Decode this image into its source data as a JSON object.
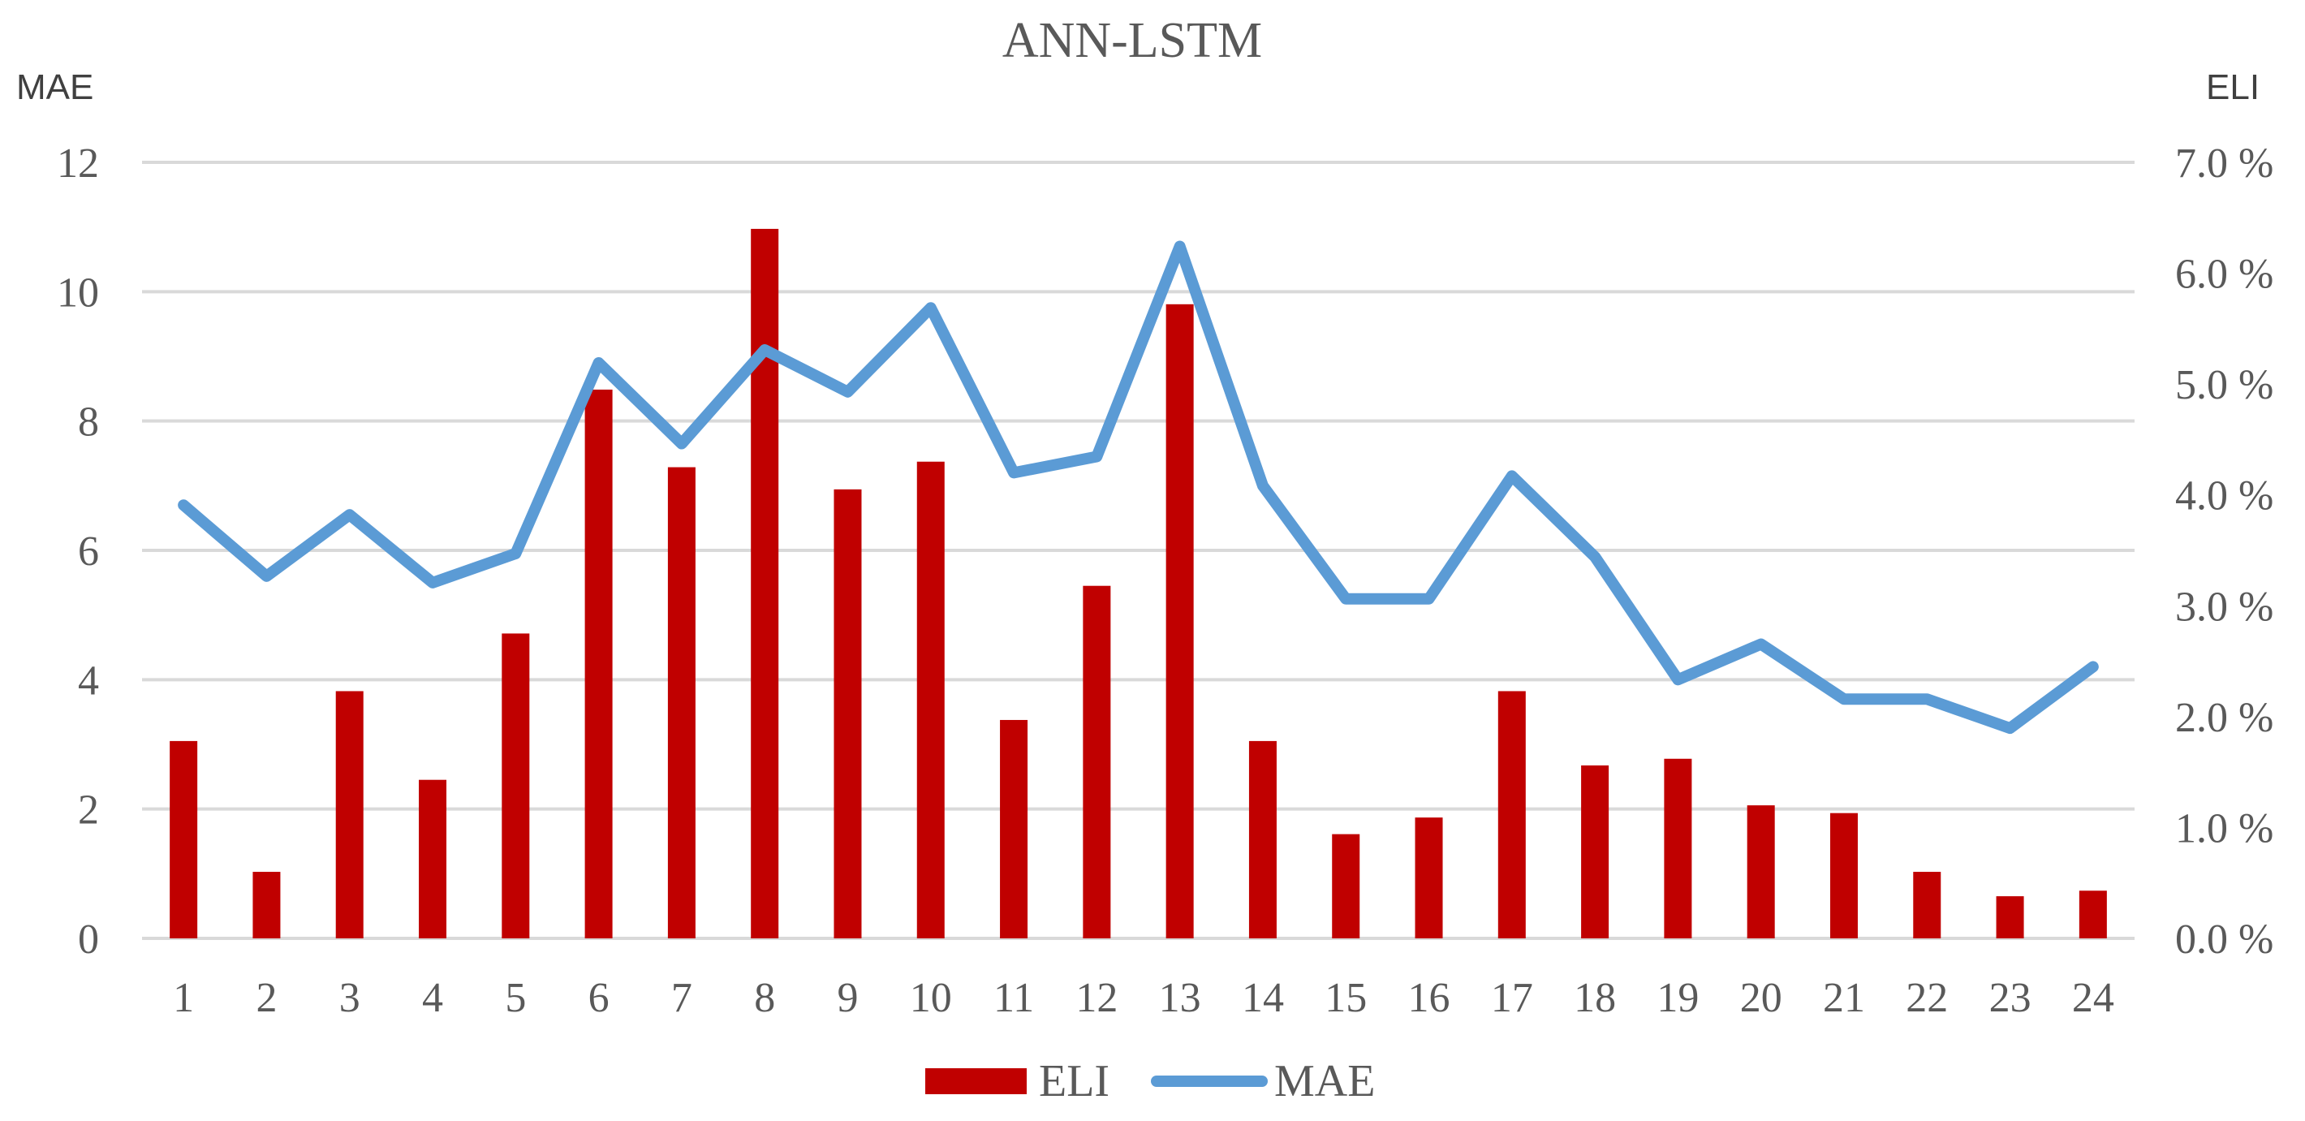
{
  "chart_data": {
    "type": "bar",
    "title": "ANN-LSTM",
    "left_axis_label": "MAE",
    "right_axis_label": "ELI",
    "categories": [
      "1",
      "2",
      "3",
      "4",
      "5",
      "6",
      "7",
      "8",
      "9",
      "10",
      "11",
      "12",
      "13",
      "14",
      "15",
      "16",
      "17",
      "18",
      "19",
      "20",
      "21",
      "22",
      "23",
      "24"
    ],
    "left_axis": {
      "min": 0,
      "max": 12,
      "ticks": [
        "0",
        "2",
        "4",
        "6",
        "8",
        "10",
        "12"
      ]
    },
    "right_axis": {
      "min": 0,
      "max": 7,
      "ticks": [
        "0.0 %",
        "1.0 %",
        "2.0 %",
        "3.0 %",
        "4.0 %",
        "5.0 %",
        "6.0 %",
        "7.0 %"
      ]
    },
    "series": [
      {
        "name": "ELI",
        "type": "bar",
        "axis": "right",
        "color": "#C00000",
        "values": [
          1.78,
          0.6,
          2.23,
          1.43,
          2.75,
          4.95,
          4.25,
          6.4,
          4.05,
          4.3,
          1.97,
          3.18,
          5.72,
          1.78,
          0.94,
          1.09,
          2.23,
          1.56,
          1.62,
          1.2,
          1.13,
          0.6,
          0.38,
          0.43
        ]
      },
      {
        "name": "MAE",
        "type": "line",
        "axis": "left",
        "color": "#5B9BD5",
        "values": [
          6.7,
          5.6,
          6.55,
          5.5,
          5.95,
          8.9,
          7.65,
          9.1,
          8.45,
          9.75,
          7.2,
          7.45,
          10.7,
          7.0,
          5.25,
          5.25,
          7.15,
          5.9,
          4.0,
          4.55,
          3.7,
          3.7,
          3.25,
          4.2
        ]
      }
    ],
    "grid": true,
    "legend": "bottom"
  }
}
